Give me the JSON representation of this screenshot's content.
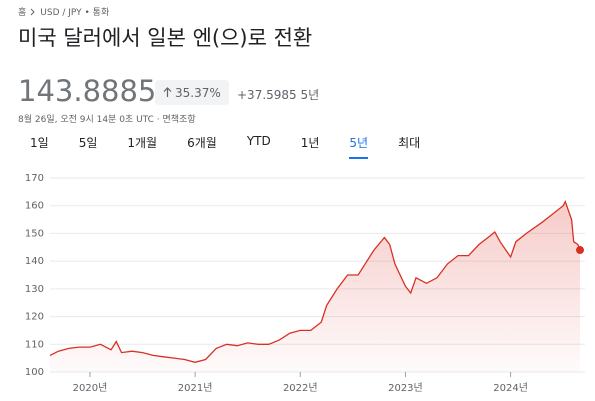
{
  "breadcrumb": [
    "홈",
    "USD / JPY • 통화"
  ],
  "title": "미국 달러에서 일본 엔(으)로 전환",
  "price": "143.8885",
  "change_pct": "35.37%",
  "change_abs": "+37.5985",
  "change_period": "5년",
  "timestamp": "8월 26일, 오전 9시 14분 0초 UTC · 면책조항",
  "tabs": [
    "1일",
    "5일",
    "1개월",
    "6개월",
    "YTD",
    "1년",
    "5년",
    "최대"
  ],
  "selected_tab": 6,
  "chart_data": {
    "type": "line",
    "x": [
      2019.62,
      2019.7,
      2019.8,
      2019.9,
      2020.0,
      2020.1,
      2020.2,
      2020.25,
      2020.3,
      2020.4,
      2020.5,
      2020.6,
      2020.7,
      2020.8,
      2020.9,
      2021.0,
      2021.1,
      2021.2,
      2021.3,
      2021.4,
      2021.5,
      2021.6,
      2021.7,
      2021.8,
      2021.9,
      2022.0,
      2022.1,
      2022.2,
      2022.25,
      2022.35,
      2022.45,
      2022.55,
      2022.6,
      2022.7,
      2022.8,
      2022.85,
      2022.9,
      2023.0,
      2023.05,
      2023.1,
      2023.2,
      2023.3,
      2023.4,
      2023.5,
      2023.6,
      2023.7,
      2023.8,
      2023.85,
      2023.9,
      2024.0,
      2024.05,
      2024.15,
      2024.3,
      2024.4,
      2024.5,
      2024.52,
      2024.58,
      2024.6,
      2024.64,
      2024.66
    ],
    "values": [
      106,
      107.5,
      108.5,
      109,
      109,
      110,
      108,
      111,
      107,
      107.5,
      107,
      106,
      105.5,
      105,
      104.5,
      103.5,
      104.5,
      108.5,
      110,
      109.5,
      110.5,
      110,
      110,
      111.5,
      114,
      115,
      115,
      118,
      124,
      130,
      135,
      135,
      138,
      144,
      148.5,
      146,
      139,
      131,
      128.5,
      134,
      132,
      134,
      139,
      142,
      142,
      146,
      149,
      150.5,
      147,
      141.5,
      147,
      150,
      154,
      157,
      160,
      161.5,
      155,
      147,
      146,
      144
    ],
    "color": "#d93025",
    "xlim": [
      2019.62,
      2024.66
    ],
    "xticks": [
      {
        "value": 2020,
        "label": "2020년"
      },
      {
        "value": 2021,
        "label": "2021년"
      },
      {
        "value": 2022,
        "label": "2022년"
      },
      {
        "value": 2023,
        "label": "2023년"
      },
      {
        "value": 2024,
        "label": "2024년"
      }
    ],
    "ylim": [
      100,
      170
    ],
    "yticks": [
      100,
      110,
      120,
      130,
      140,
      150,
      160,
      170
    ],
    "grid": true
  }
}
